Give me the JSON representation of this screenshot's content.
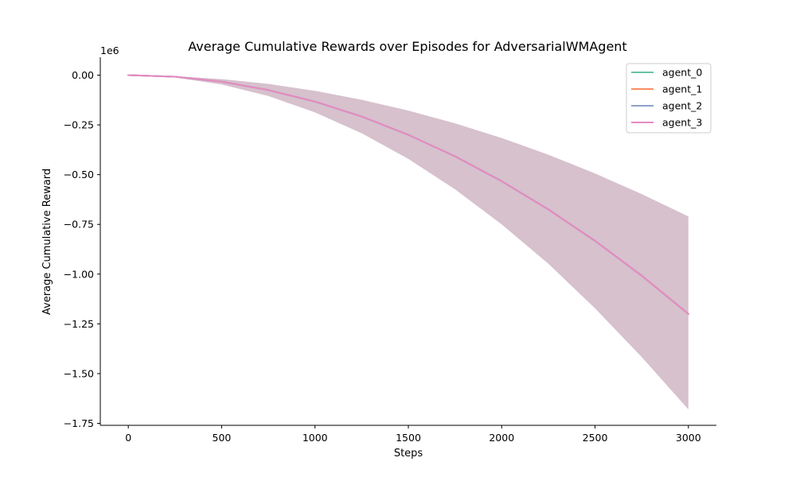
{
  "chart_data": {
    "type": "line",
    "title": "Average Cumulative Rewards over Episodes for AdversarialWMAgent",
    "xlabel": "Steps",
    "ylabel": "Average Cumulative Reward",
    "y_offset_text": "1e6",
    "xlim": [
      -150,
      3150
    ],
    "ylim": [
      -1.76,
      0.09
    ],
    "xticks": [
      0,
      500,
      1000,
      1500,
      2000,
      2500,
      3000
    ],
    "xtick_labels": [
      "0",
      "500",
      "1000",
      "1500",
      "2000",
      "2500",
      "3000"
    ],
    "yticks": [
      0.0,
      -0.25,
      -0.5,
      -0.75,
      -1.0,
      -1.25,
      -1.5,
      -1.75
    ],
    "ytick_labels": [
      "0.00",
      "−0.25",
      "−0.50",
      "−0.75",
      "−1.00",
      "−1.25",
      "−1.50",
      "−1.75"
    ],
    "legend_position": "top-right",
    "grid": false,
    "x": [
      0,
      250,
      500,
      750,
      1000,
      1250,
      1500,
      1750,
      2000,
      2250,
      2500,
      2750,
      3000
    ],
    "series": [
      {
        "name": "agent_0",
        "color": "#66c2a5",
        "values": [
          0,
          -0.008,
          -0.033,
          -0.075,
          -0.133,
          -0.208,
          -0.3,
          -0.408,
          -0.533,
          -0.675,
          -0.833,
          -1.008,
          -1.2
        ]
      },
      {
        "name": "agent_1",
        "color": "#fc8d62",
        "values": [
          0,
          -0.008,
          -0.033,
          -0.075,
          -0.133,
          -0.208,
          -0.3,
          -0.408,
          -0.533,
          -0.675,
          -0.833,
          -1.008,
          -1.2
        ]
      },
      {
        "name": "agent_2",
        "color": "#8da0cb",
        "values": [
          0,
          -0.008,
          -0.033,
          -0.075,
          -0.133,
          -0.208,
          -0.3,
          -0.408,
          -0.533,
          -0.675,
          -0.833,
          -1.008,
          -1.2
        ]
      },
      {
        "name": "agent_3",
        "color": "#e78ac3",
        "values": [
          0,
          -0.008,
          -0.033,
          -0.075,
          -0.133,
          -0.208,
          -0.3,
          -0.408,
          -0.533,
          -0.675,
          -0.833,
          -1.008,
          -1.2
        ]
      }
    ],
    "band": {
      "color": "#d6c1cd",
      "upper": [
        0,
        -0.005,
        -0.02,
        -0.044,
        -0.079,
        -0.124,
        -0.178,
        -0.242,
        -0.316,
        -0.4,
        -0.494,
        -0.598,
        -0.71
      ],
      "lower": [
        0,
        -0.012,
        -0.047,
        -0.105,
        -0.187,
        -0.292,
        -0.421,
        -0.574,
        -0.75,
        -0.948,
        -1.172,
        -1.417,
        -1.68
      ]
    }
  }
}
